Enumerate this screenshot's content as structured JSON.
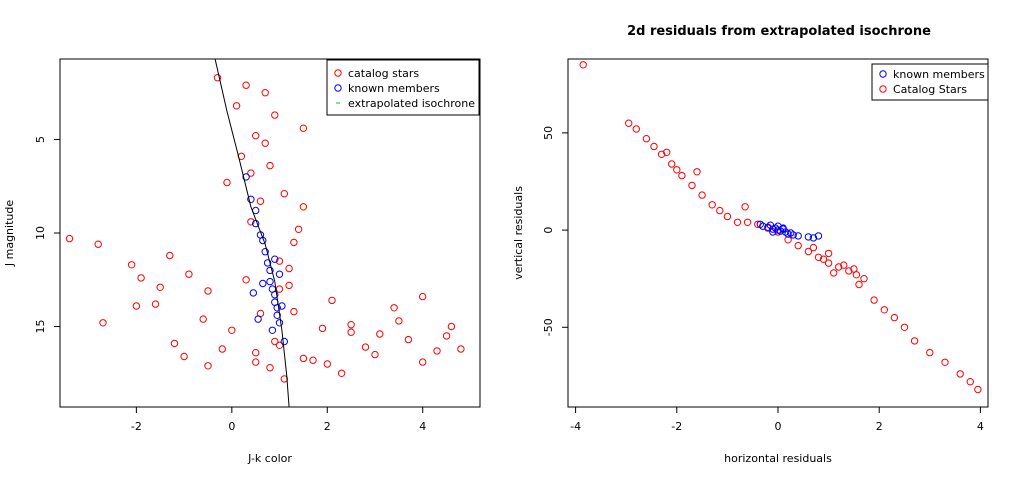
{
  "colors": {
    "catalog": "#ff0000",
    "members": "#0000ff",
    "isochrone_legend": "#00cd00",
    "isochrone_line": "#000000"
  },
  "chart_data": [
    {
      "type": "scatter",
      "title": "",
      "xlabel": "J-k color",
      "ylabel": "J magnitude",
      "xlim": [
        -3.6,
        5.2
      ],
      "ylim": [
        19.3,
        0.7
      ],
      "y_reversed": true,
      "x_ticks": [
        "-2",
        "0",
        "2",
        "4"
      ],
      "y_ticks": [
        "5",
        "10",
        "15"
      ],
      "grid": false,
      "legend_position": "top-right",
      "legend": [
        "catalog stars",
        "known members",
        "extrapolated isochrone"
      ],
      "series": [
        {
          "name": "catalog stars",
          "marker": "open-circle",
          "x": [
            -3.4,
            -2.8,
            -2.7,
            -2.1,
            -1.9,
            -1.6,
            -1.3,
            -1.2,
            -0.9,
            -0.6,
            -0.5,
            -0.3,
            -0.2,
            -0.1,
            0.1,
            0.2,
            0.3,
            0.4,
            0.5,
            0.6,
            0.7,
            0.8,
            0.9,
            1.0,
            1.1,
            1.2,
            1.3,
            1.4,
            1.5,
            1.7,
            1.9,
            2.1,
            2.3,
            2.5,
            2.8,
            3.1,
            3.4,
            3.7,
            4.0,
            4.3,
            4.6,
            4.8,
            0.3,
            0.6,
            0.9,
            1.2,
            0.5,
            0.8,
            1.0,
            1.3,
            1.5,
            0.4,
            0.7,
            1.1,
            -2.0,
            -1.5,
            -1.0,
            -0.5,
            0.0,
            0.5,
            1.0,
            1.5,
            2.0,
            2.5,
            3.0,
            3.5,
            4.0,
            4.5
          ],
          "y": [
            10.3,
            10.6,
            14.8,
            11.7,
            12.4,
            13.8,
            11.2,
            15.9,
            12.2,
            14.6,
            13.1,
            1.7,
            16.2,
            7.3,
            3.2,
            5.9,
            2.1,
            9.4,
            4.8,
            8.3,
            2.5,
            6.4,
            3.7,
            11.5,
            7.9,
            12.8,
            14.2,
            9.8,
            4.4,
            16.8,
            15.1,
            13.6,
            17.5,
            14.9,
            16.1,
            15.4,
            14.0,
            15.7,
            13.4,
            16.3,
            15.0,
            16.2,
            12.5,
            14.3,
            15.8,
            11.9,
            16.9,
            17.2,
            13.0,
            10.5,
            8.6,
            6.8,
            5.2,
            17.8,
            13.9,
            12.9,
            16.6,
            17.1,
            15.2,
            16.4,
            16.0,
            16.7,
            17.0,
            15.3,
            16.5,
            14.7,
            16.9,
            15.5
          ]
        },
        {
          "name": "known members",
          "marker": "open-circle",
          "x": [
            0.3,
            0.4,
            0.5,
            0.5,
            0.6,
            0.65,
            0.7,
            0.75,
            0.8,
            0.8,
            0.85,
            0.9,
            0.9,
            0.95,
            0.95,
            1.0,
            1.0,
            0.9,
            0.85,
            0.55,
            0.45,
            1.1,
            0.65,
            1.05
          ],
          "y": [
            7.0,
            8.2,
            8.8,
            9.5,
            10.1,
            10.4,
            11.0,
            11.6,
            12.0,
            12.6,
            13.0,
            13.3,
            13.7,
            14.0,
            14.4,
            14.8,
            12.2,
            11.4,
            15.2,
            14.6,
            13.2,
            15.8,
            12.7,
            13.9
          ]
        },
        {
          "name": "extrapolated isochrone",
          "marker": "line",
          "x": [
            -0.35,
            -0.1,
            0.15,
            0.4,
            0.7,
            0.9,
            1.05,
            1.15,
            1.2
          ],
          "y": [
            0.7,
            3.5,
            6.0,
            8.6,
            10.6,
            12.6,
            15.2,
            17.6,
            19.3
          ]
        }
      ]
    },
    {
      "type": "scatter",
      "title": "2d residuals from extrapolated isochrone",
      "xlabel": "horizontal residuals",
      "ylabel": "vertical residuals",
      "xlim": [
        -4.15,
        4.15
      ],
      "ylim": [
        -91,
        88
      ],
      "x_ticks": [
        "-4",
        "-2",
        "0",
        "2",
        "4"
      ],
      "y_ticks": [
        "-50",
        "0",
        "50"
      ],
      "grid": false,
      "legend_position": "top-right",
      "legend": [
        "known members",
        "Catalog Stars"
      ],
      "series": [
        {
          "name": "known members",
          "marker": "open-circle",
          "x": [
            -0.35,
            -0.3,
            -0.2,
            -0.15,
            -0.1,
            -0.05,
            0.0,
            0.05,
            0.1,
            0.15,
            0.2,
            0.3,
            0.4,
            0.6,
            0.7,
            0.8,
            0.0,
            -0.1,
            0.1,
            0.25
          ],
          "y": [
            3.0,
            2.0,
            1.5,
            2.5,
            0.5,
            1.0,
            0.0,
            -0.5,
            1.0,
            -1.0,
            -2.0,
            -2.5,
            -3.0,
            -3.5,
            -4.0,
            -3.0,
            2.0,
            -1.0,
            0.5,
            -1.5
          ]
        },
        {
          "name": "Catalog Stars",
          "marker": "open-circle",
          "x": [
            -3.85,
            -2.95,
            -2.8,
            -2.6,
            -2.45,
            -2.3,
            -2.1,
            -2.0,
            -1.9,
            -1.7,
            -1.5,
            -1.3,
            -1.15,
            -1.0,
            -0.8,
            -0.6,
            -0.4,
            -0.2,
            0.0,
            0.2,
            0.4,
            0.6,
            0.8,
            1.0,
            1.2,
            1.4,
            1.55,
            1.7,
            1.9,
            2.1,
            2.3,
            2.5,
            2.7,
            3.0,
            3.3,
            3.6,
            3.8,
            3.95,
            -1.6,
            -2.2,
            -0.65,
            0.9,
            1.1,
            1.3,
            1.5,
            1.6,
            0.7,
            1.0
          ],
          "y": [
            85,
            55,
            52,
            47,
            43,
            39,
            34,
            31,
            28,
            23,
            18,
            13,
            10,
            7,
            4,
            4,
            3,
            1,
            -1,
            -5,
            -8,
            -11,
            -14,
            -17,
            -19,
            -21,
            -23,
            -25,
            -36,
            -41,
            -45,
            -50,
            -57,
            -63,
            -68,
            -74,
            -78,
            -82,
            30,
            40,
            12,
            -15,
            -22,
            -18,
            -20,
            -28,
            -9,
            -12
          ]
        }
      ]
    }
  ]
}
